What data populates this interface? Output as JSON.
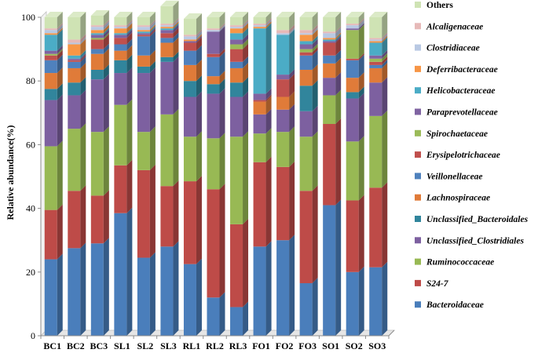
{
  "chart_data": {
    "type": "bar",
    "stacked": true,
    "ylabel": "Relative abundance(%)",
    "ylim": [
      0,
      100
    ],
    "yticks": [
      0,
      20,
      40,
      60,
      80,
      100
    ],
    "categories": [
      "BC1",
      "BC2",
      "BC3",
      "SL1",
      "SL2",
      "SL3",
      "RL1",
      "RL2",
      "RL3",
      "FO1",
      "FO2",
      "FO3",
      "SO1",
      "SO2",
      "SO3"
    ],
    "legend_position": "right",
    "series": [
      {
        "name": "Bacteroidaceae",
        "color": "#4a7ebb",
        "values": [
          24,
          27.5,
          29,
          38.5,
          24.5,
          28,
          22.5,
          12,
          9,
          28,
          30,
          16.5,
          41,
          20,
          21.5
        ]
      },
      {
        "name": "S24-7",
        "color": "#be4b48",
        "values": [
          15.5,
          18,
          15,
          15,
          27.5,
          19,
          26,
          34,
          26,
          26.5,
          23,
          29,
          25.5,
          22.5,
          25
        ]
      },
      {
        "name": "Ruminococcaceae",
        "color": "#98b954",
        "values": [
          20,
          19.5,
          20,
          19,
          12,
          22.5,
          14,
          16,
          27.5,
          9,
          11,
          17,
          9,
          18.5,
          22.5
        ]
      },
      {
        "name": "Unclassified_Clostridiales",
        "color": "#7d60a0",
        "values": [
          14.5,
          10.5,
          16.5,
          10,
          18.5,
          16.5,
          12.5,
          14,
          12.5,
          6,
          7,
          8,
          5.5,
          13.5,
          10.5
        ]
      },
      {
        "name": "Unclassified_Bacteroidales",
        "color": "#31859c",
        "values": [
          3.5,
          4,
          3,
          4,
          2,
          1.5,
          5,
          3,
          4.5,
          0,
          0,
          8,
          0,
          2,
          0
        ]
      },
      {
        "name": "Lachnospiraceae",
        "color": "#e07b39",
        "values": [
          5,
          4.5,
          5,
          3,
          3.5,
          4.5,
          5,
          2.5,
          4.5,
          4,
          4,
          5,
          4.5,
          4.5,
          4.5
        ]
      },
      {
        "name": "Veillonellaceae",
        "color": "#4f81bd",
        "values": [
          4,
          2,
          1.5,
          2,
          6,
          1.5,
          4.5,
          6,
          2,
          0,
          0,
          4.5,
          2.5,
          5.5,
          1
        ]
      },
      {
        "name": "Erysipelotrichaceae",
        "color": "#c0504d",
        "values": [
          1.5,
          0.5,
          3,
          2,
          0.5,
          1.5,
          2.5,
          1,
          4,
          0.5,
          5.5,
          1,
          4,
          0.5,
          1
        ]
      },
      {
        "name": "Spirochaetaceae",
        "color": "#9bbb59",
        "values": [
          0.5,
          0,
          0.5,
          0,
          0,
          0,
          0,
          0,
          1.5,
          0,
          0,
          1,
          0,
          9,
          1
        ]
      },
      {
        "name": "Paraprevotellaceae",
        "color": "#8064a2",
        "values": [
          1,
          0.5,
          1,
          1,
          0.5,
          1,
          0.5,
          7,
          1.5,
          2,
          1.5,
          1.5,
          0.5,
          0.5,
          1
        ]
      },
      {
        "name": "Helicobacteraceae",
        "color": "#4bacc6",
        "values": [
          5,
          1,
          0.5,
          0.5,
          0.5,
          0.5,
          0,
          0,
          2,
          20.5,
          12.5,
          1,
          0.5,
          0,
          4
        ]
      },
      {
        "name": "Deferribacteraceae",
        "color": "#f79646",
        "values": [
          0.5,
          3.5,
          1,
          1.5,
          0.5,
          0.5,
          0.5,
          0,
          1.5,
          0.5,
          0,
          2,
          0.5,
          0,
          0.5
        ]
      },
      {
        "name": "Clostridiaceae",
        "color": "#b9c9e3",
        "values": [
          1,
          0.5,
          1,
          0.5,
          1,
          0.5,
          1,
          0.5,
          0.5,
          0.5,
          0.5,
          0.5,
          1.5,
          1,
          0.5
        ]
      },
      {
        "name": "Alcaligenaceae",
        "color": "#e6b9b8",
        "values": [
          0.5,
          1,
          0.5,
          0.5,
          0.5,
          0.5,
          0.5,
          0.5,
          0.5,
          0.5,
          1,
          1,
          0.5,
          0.5,
          0.5
        ]
      },
      {
        "name": "Others",
        "color": "#cfe3b4",
        "values": [
          3.5,
          7,
          3,
          2.5,
          2.5,
          5.5,
          5,
          3.5,
          2.5,
          2,
          4,
          4,
          4.5,
          2,
          6.5
        ]
      }
    ]
  }
}
